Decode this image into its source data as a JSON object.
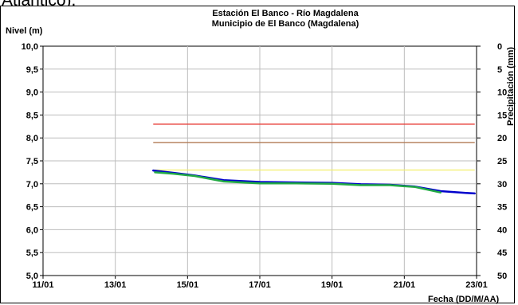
{
  "page": {
    "top_text": "Atlántico)."
  },
  "chart_data": {
    "type": "line",
    "title": "Estación El Banco - Río Magdalena",
    "subtitle": "Municipio de El Banco (Magdalena)",
    "ylabel": "Nivel (m)",
    "y2label": "Precipitación (mm)",
    "xlabel": "Fecha (DD/M/AA)",
    "grid": true,
    "xlim": [
      0,
      12
    ],
    "x_tick_labels": [
      "11/01",
      "13/01",
      "15/01",
      "17/01",
      "19/01",
      "21/01",
      "23/01"
    ],
    "ylim": [
      5.0,
      10.0
    ],
    "y_tick_labels": [
      "10,0",
      "9,5",
      "9,0",
      "8,5",
      "8,0",
      "7,5",
      "7,0",
      "6,5",
      "6,0",
      "5,5",
      "5,0"
    ],
    "y2lim": [
      0,
      50
    ],
    "y2_reversed": true,
    "y2_tick_labels": [
      "0",
      "5",
      "10",
      "15",
      "20",
      "25",
      "30",
      "35",
      "40",
      "45",
      "50"
    ],
    "series": [
      {
        "color": "#0000cc",
        "width": 2.5,
        "x": [
          3.05,
          3.6,
          4.2,
          5.0,
          6.0,
          7.0,
          8.0,
          8.8,
          9.6,
          10.3,
          11.0,
          11.7,
          11.95
        ],
        "y": [
          7.29,
          7.24,
          7.18,
          7.08,
          7.04,
          7.03,
          7.02,
          6.99,
          6.98,
          6.94,
          6.84,
          6.8,
          6.79
        ]
      },
      {
        "color": "#22aa44",
        "width": 2.5,
        "x": [
          3.1,
          3.6,
          4.2,
          5.0,
          6.0,
          7.0,
          8.0,
          8.8,
          9.6,
          10.3,
          11.0
        ],
        "y": [
          7.25,
          7.22,
          7.17,
          7.05,
          7.01,
          7.01,
          7.0,
          6.97,
          6.97,
          6.93,
          6.81
        ]
      }
    ],
    "thresholds": [
      {
        "value": 8.3,
        "color": "#e8423c",
        "x_start": 3.05,
        "x_end": 11.95
      },
      {
        "value": 7.9,
        "color": "#b07a55",
        "x_start": 3.05,
        "x_end": 11.95
      },
      {
        "value": 7.3,
        "color": "#f3f06a",
        "x_start": 3.05,
        "x_end": 11.95
      }
    ]
  }
}
